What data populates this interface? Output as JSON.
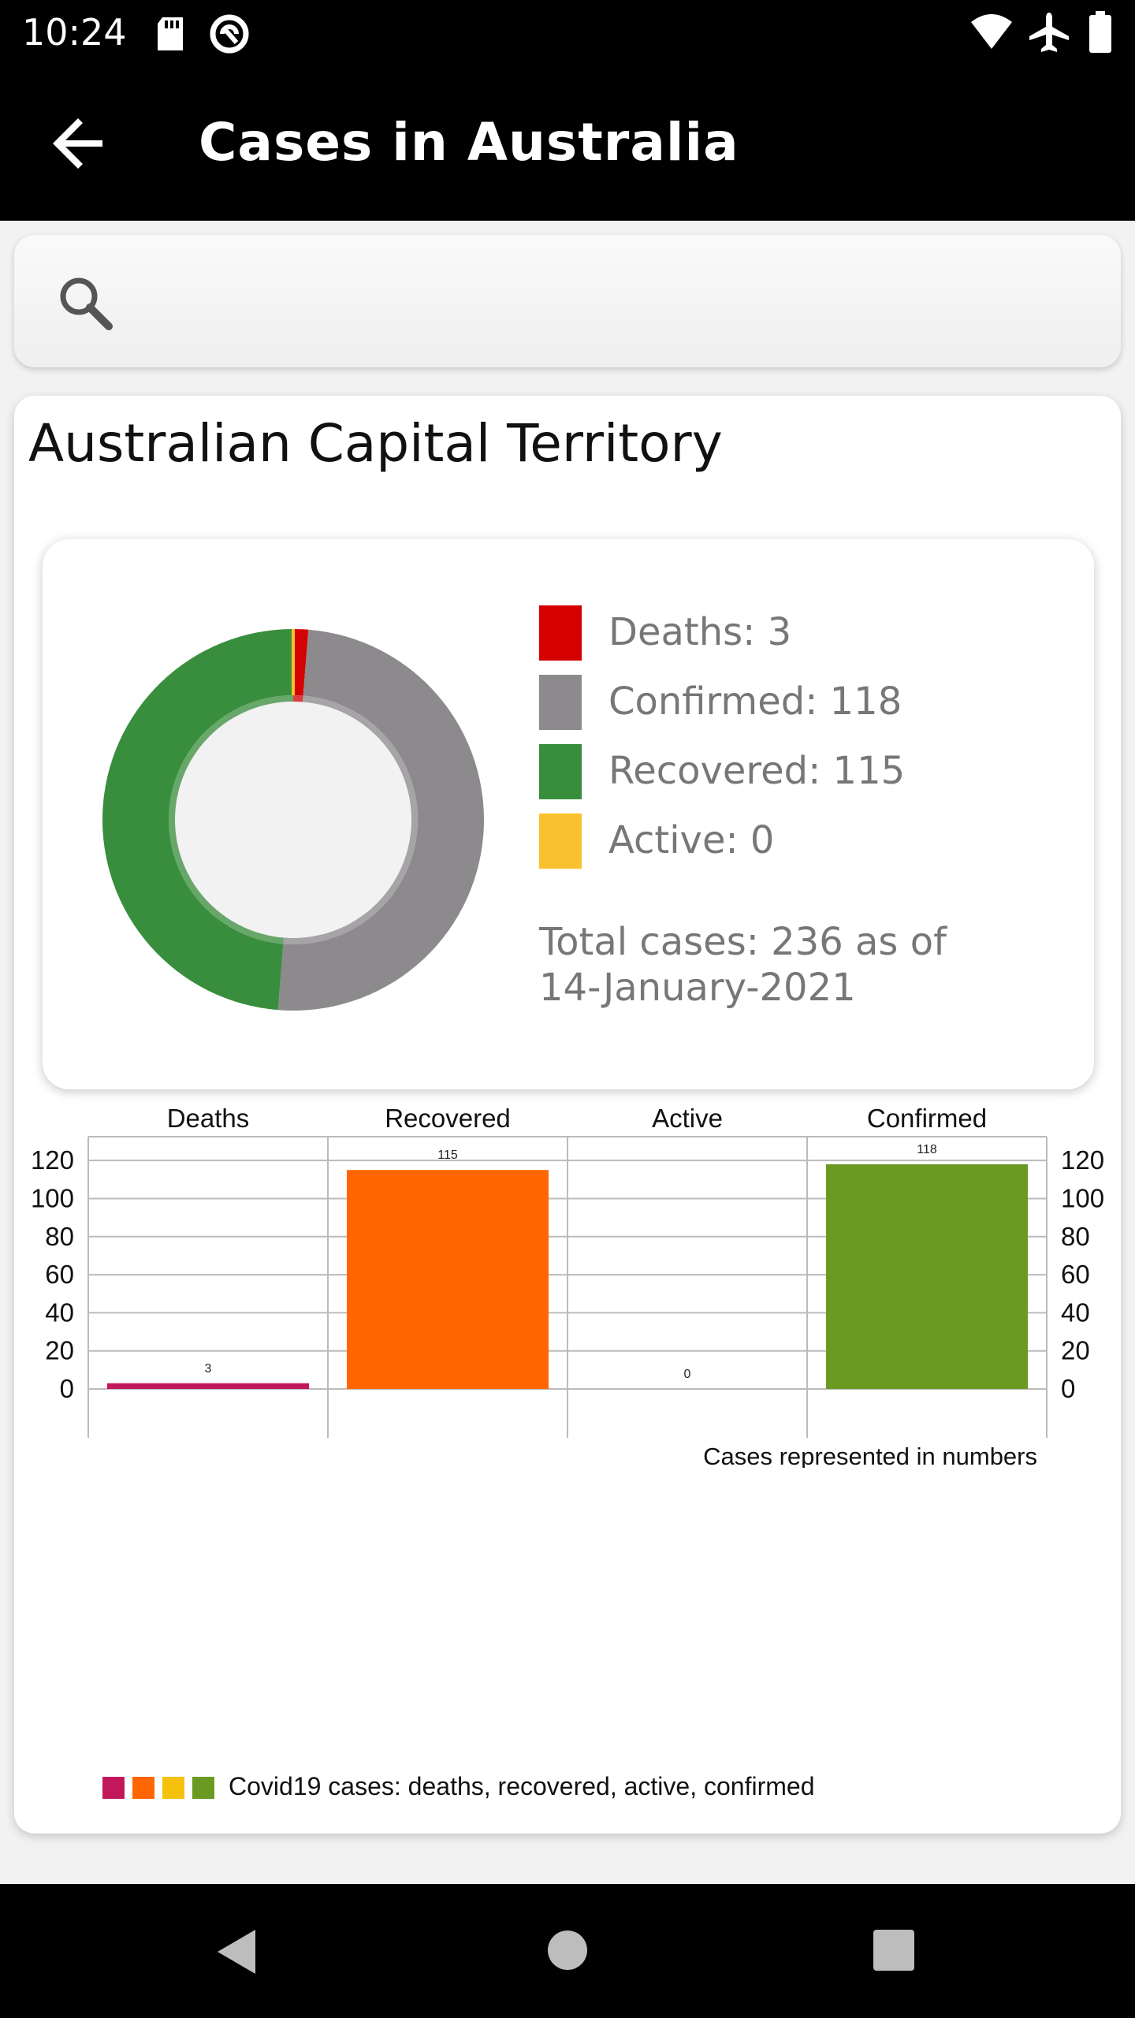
{
  "status_bar": {
    "time": "10:24",
    "icons": [
      "sd-card-icon",
      "data-saver-icon",
      "wifi-icon",
      "airplane-mode-icon",
      "battery-icon"
    ]
  },
  "app_bar": {
    "title": "Cases in Australia",
    "back_icon": "arrow-back-icon"
  },
  "search": {
    "placeholder": "",
    "icon": "search-icon"
  },
  "card": {
    "title": "Australian Capital Territory",
    "pie": {
      "legend": [
        {
          "label": "Deaths: 3",
          "color": "#d50000"
        },
        {
          "label": "Confirmed: 118",
          "color": "#8c8a8c"
        },
        {
          "label": "Recovered: 115",
          "color": "#388e3c"
        },
        {
          "label": "Active: 0",
          "color": "#fbc02d"
        }
      ],
      "total_line1": "Total cases: 236 as of",
      "total_line2": "14-January-2021"
    }
  },
  "chart_data": [
    {
      "type": "pie",
      "style": "donut",
      "categories": [
        "Deaths",
        "Confirmed",
        "Recovered",
        "Active"
      ],
      "values": [
        3,
        118,
        115,
        0
      ],
      "colors": [
        "#d50000",
        "#8c8a8c",
        "#388e3c",
        "#fbc02d"
      ]
    },
    {
      "type": "bar",
      "categories": [
        "Deaths",
        "Recovered",
        "Active",
        "Confirmed"
      ],
      "values": [
        3,
        115,
        0,
        118
      ],
      "colors": [
        "#c2185b",
        "#ff6600",
        "#f4c20d",
        "#6b9a22"
      ],
      "ylim": [
        0,
        130
      ],
      "yticks": [
        0,
        20,
        40,
        60,
        80,
        100,
        120
      ],
      "xlabel": "Cases represented in numbers",
      "legend": "Covid19 cases: deaths, recovered, active, confirmed",
      "legend_position": "bottom-left",
      "grid": true
    }
  ],
  "nav_bar": {
    "buttons": [
      "back-nav-icon",
      "home-nav-icon",
      "recents-nav-icon"
    ]
  }
}
